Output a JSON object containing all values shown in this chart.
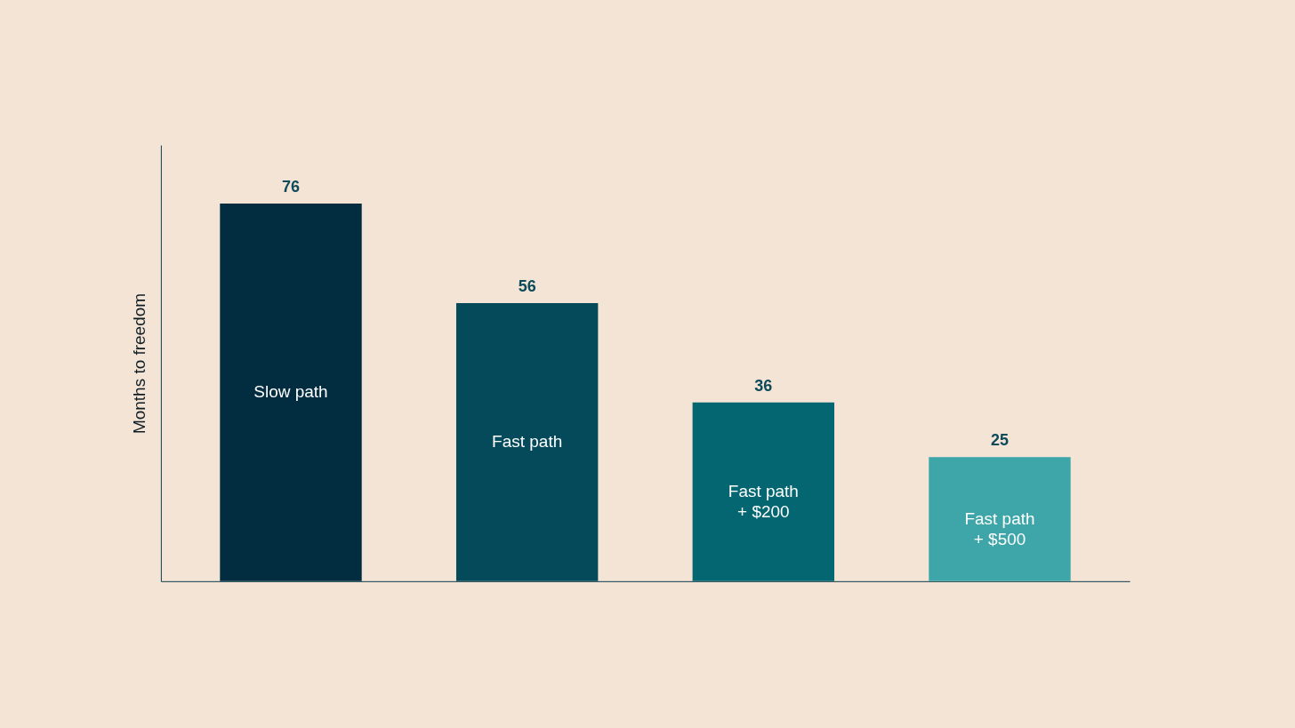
{
  "chart_data": {
    "type": "bar",
    "ylabel": "Months to freedom",
    "categories": [
      "Slow path",
      "Fast path",
      "Fast path\n+ $200",
      "Fast path\n+ $500"
    ],
    "values": [
      76,
      56,
      36,
      25
    ],
    "colors": [
      "#022d41",
      "#044a5a",
      "#036670",
      "#3ea6a8"
    ],
    "data_labels": true,
    "grid": false,
    "legend": false,
    "tick_labels": false
  }
}
